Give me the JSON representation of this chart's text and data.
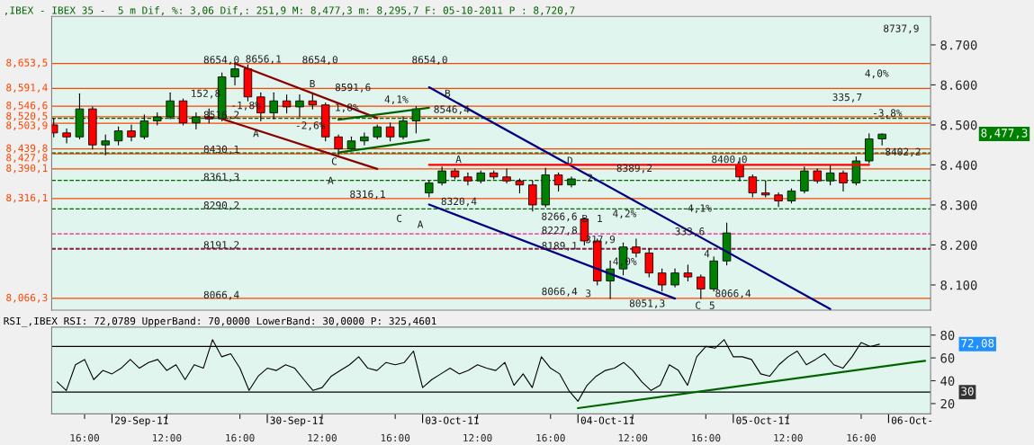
{
  "chart_data": [
    {
      "type": "candlestick",
      "title": ",IBEX - IBEX 35 -  5 m Dif, %: 3,06 Dif,: 251,9 M: 8,477,3 m: 8,295,7 F: 05-10-2011 P : 8,720,7",
      "categories": [
        null,
        null,
        null,
        null,
        null,
        null,
        null,
        null,
        null,
        null,
        null,
        null,
        null,
        null,
        null,
        null,
        null,
        null,
        null,
        null,
        null,
        null,
        null,
        null,
        null,
        null,
        null,
        null,
        null,
        null,
        null,
        null,
        null,
        null,
        null,
        null,
        null,
        null,
        null,
        null,
        null,
        null,
        null,
        null,
        null,
        null,
        null,
        null,
        null,
        null,
        null,
        null,
        null,
        null,
        null,
        null,
        null,
        null,
        null,
        null,
        null,
        null,
        null,
        null,
        null
      ],
      "ohlc": [
        [
          8500,
          8515,
          8470,
          8480
        ],
        [
          8480,
          8490,
          8455,
          8470
        ],
        [
          8470,
          8578,
          8465,
          8540
        ],
        [
          8540,
          8545,
          8440,
          8450
        ],
        [
          8450,
          8475,
          8425,
          8460
        ],
        [
          8460,
          8495,
          8450,
          8485
        ],
        [
          8485,
          8500,
          8460,
          8470
        ],
        [
          8470,
          8525,
          8465,
          8510
        ],
        [
          8510,
          8530,
          8500,
          8520
        ],
        [
          8520,
          8580,
          8515,
          8560
        ],
        [
          8560,
          8565,
          8500,
          8505
        ],
        [
          8505,
          8530,
          8490,
          8520
        ],
        [
          8520,
          8540,
          8505,
          8515
        ],
        [
          8515,
          8630,
          8510,
          8620
        ],
        [
          8620,
          8656,
          8600,
          8640
        ],
        [
          8640,
          8650,
          8560,
          8570
        ],
        [
          8570,
          8580,
          8510,
          8530
        ],
        [
          8530,
          8580,
          8515,
          8560
        ],
        [
          8560,
          8575,
          8530,
          8545
        ],
        [
          8545,
          8575,
          8520,
          8560
        ],
        [
          8560,
          8580,
          8540,
          8550
        ],
        [
          8550,
          8555,
          8460,
          8470
        ],
        [
          8470,
          8475,
          8425,
          8440
        ],
        [
          8440,
          8470,
          8435,
          8460
        ],
        [
          8460,
          8480,
          8450,
          8470
        ],
        [
          8470,
          8500,
          8465,
          8495
        ],
        [
          8495,
          8505,
          8460,
          8470
        ],
        [
          8470,
          8520,
          8465,
          8510
        ],
        [
          8510,
          8546,
          8480,
          8540
        ],
        [
          8330,
          8360,
          8320,
          8355
        ],
        [
          8355,
          8395,
          8350,
          8385
        ],
        [
          8385,
          8390,
          8365,
          8370
        ],
        [
          8370,
          8380,
          8350,
          8360
        ],
        [
          8360,
          8385,
          8355,
          8380
        ],
        [
          8380,
          8385,
          8365,
          8370
        ],
        [
          8370,
          8390,
          8355,
          8360
        ],
        [
          8360,
          8365,
          8330,
          8350
        ],
        [
          8350,
          8360,
          8285,
          8300
        ],
        [
          8300,
          8392,
          8295,
          8375
        ],
        [
          8375,
          8380,
          8335,
          8350
        ],
        [
          8350,
          8370,
          8345,
          8365
        ],
        [
          8265,
          8268,
          8200,
          8210
        ],
        [
          8210,
          8215,
          8100,
          8110
        ],
        [
          8110,
          8160,
          8066,
          8140
        ],
        [
          8140,
          8205,
          8125,
          8195
        ],
        [
          8195,
          8215,
          8170,
          8180
        ],
        [
          8180,
          8190,
          8120,
          8130
        ],
        [
          8130,
          8140,
          8085,
          8100
        ],
        [
          8100,
          8140,
          8095,
          8130
        ],
        [
          8130,
          8150,
          8110,
          8120
        ],
        [
          8120,
          8125,
          8066,
          8090
        ],
        [
          8090,
          8170,
          8085,
          8160
        ],
        [
          8160,
          8255,
          8150,
          8230
        ],
        [
          8400,
          8418,
          8360,
          8370
        ],
        [
          8370,
          8375,
          8320,
          8330
        ],
        [
          8330,
          8360,
          8320,
          8325
        ],
        [
          8325,
          8330,
          8296,
          8310
        ],
        [
          8310,
          8340,
          8305,
          8335
        ],
        [
          8335,
          8395,
          8330,
          8385
        ],
        [
          8385,
          8390,
          8355,
          8360
        ],
        [
          8360,
          8400,
          8350,
          8380
        ],
        [
          8380,
          8385,
          8335,
          8355
        ],
        [
          8355,
          8420,
          8350,
          8410
        ],
        [
          8410,
          8478,
          8405,
          8465
        ],
        [
          8465,
          8478,
          8450,
          8477
        ]
      ],
      "colors": [
        "#ff0000",
        "#ff0000",
        "#008000",
        "#ff0000",
        "#008000",
        "#008000",
        "#ff0000",
        "#008000",
        "#008000",
        "#008000",
        "#ff0000",
        "#008000",
        "#ff0000",
        "#008000",
        "#008000",
        "#ff0000",
        "#ff0000",
        "#008000",
        "#ff0000",
        "#008000",
        "#ff0000",
        "#ff0000",
        "#ff0000",
        "#008000",
        "#008000",
        "#008000",
        "#ff0000",
        "#008000",
        "#008000",
        "#008000",
        "#008000",
        "#ff0000",
        "#ff0000",
        "#008000",
        "#ff0000",
        "#ff0000",
        "#ff0000",
        "#ff0000",
        "#008000",
        "#ff0000",
        "#008000",
        "#ff0000",
        "#ff0000",
        "#008000",
        "#008000",
        "#ff0000",
        "#ff0000",
        "#ff0000",
        "#008000",
        "#ff0000",
        "#ff0000",
        "#008000",
        "#008000",
        "#ff0000",
        "#ff0000",
        "#ff0000",
        "#ff0000",
        "#008000",
        "#008000",
        "#ff0000",
        "#008000",
        "#ff0000",
        "#008000",
        "#008000",
        "#008000"
      ],
      "series": [
        {
          "type": "line",
          "color": "#000080",
          "values": [
            null,
            null,
            null,
            null,
            null,
            null,
            null,
            null,
            null,
            null,
            null,
            null,
            null,
            null,
            null,
            null,
            null,
            null,
            null,
            null,
            null,
            null,
            null,
            null,
            null,
            null,
            null,
            null,
            null,
            8594,
            null,
            null,
            null,
            null,
            null,
            null,
            null,
            null,
            null,
            null,
            null,
            null,
            null,
            null,
            null,
            null,
            null,
            null,
            null,
            null,
            null,
            null,
            null,
            null,
            null,
            null,
            null,
            null,
            null,
            null,
            8040,
            null,
            null,
            null,
            null
          ]
        },
        {
          "type": "line",
          "color": "#000080",
          "values": [
            null,
            null,
            null,
            null,
            null,
            null,
            null,
            null,
            null,
            null,
            null,
            null,
            null,
            null,
            null,
            null,
            null,
            null,
            null,
            null,
            null,
            null,
            null,
            null,
            null,
            null,
            null,
            null,
            null,
            8301,
            null,
            null,
            null,
            null,
            null,
            null,
            null,
            null,
            null,
            null,
            null,
            null,
            null,
            null,
            null,
            null,
            null,
            null,
            8066,
            null,
            null,
            null,
            null,
            null,
            null,
            null,
            null,
            null,
            null,
            null,
            null,
            null,
            null,
            null,
            null
          ]
        },
        {
          "type": "line",
          "color": "#8b0000",
          "values": [
            null,
            null,
            null,
            null,
            null,
            null,
            null,
            null,
            null,
            null,
            null,
            null,
            null,
            null,
            8653,
            null,
            null,
            null,
            null,
            null,
            null,
            null,
            null,
            null,
            null,
            8517,
            null,
            null,
            null,
            null,
            null,
            null,
            null,
            null,
            null,
            null,
            null,
            null,
            null,
            null,
            null,
            null,
            null,
            null,
            null,
            null,
            null,
            null,
            null,
            null,
            null,
            null,
            null,
            null,
            null,
            null,
            null,
            null,
            null,
            null,
            null,
            null,
            null,
            null,
            null
          ]
        },
        {
          "type": "line",
          "color": "#8b0000",
          "values": [
            null,
            null,
            null,
            null,
            null,
            null,
            null,
            null,
            null,
            null,
            null,
            null,
            null,
            8515,
            null,
            null,
            null,
            null,
            null,
            null,
            null,
            null,
            null,
            null,
            null,
            8390,
            null,
            null,
            null,
            null,
            null,
            null,
            null,
            null,
            null,
            null,
            null,
            null,
            null,
            null,
            null,
            null,
            null,
            null,
            null,
            null,
            null,
            null,
            null,
            null,
            null,
            null,
            null,
            null,
            null,
            null,
            null,
            null,
            null,
            null,
            null,
            null,
            null,
            null,
            null
          ]
        },
        {
          "type": "line",
          "color": "#006400",
          "values": [
            null,
            null,
            null,
            null,
            null,
            null,
            null,
            null,
            null,
            null,
            null,
            null,
            null,
            null,
            null,
            null,
            null,
            null,
            null,
            null,
            null,
            null,
            8513,
            null,
            null,
            null,
            null,
            null,
            null,
            8543,
            null,
            null,
            null,
            null,
            null,
            null,
            null,
            null,
            null,
            null,
            null,
            null,
            null,
            null,
            null,
            null,
            null,
            null,
            null,
            null,
            null,
            null,
            null,
            null,
            null,
            null,
            null,
            null,
            null,
            null,
            null,
            null,
            null,
            null,
            null
          ]
        },
        {
          "type": "line",
          "color": "#006400",
          "values": [
            null,
            null,
            null,
            null,
            null,
            null,
            null,
            null,
            null,
            null,
            null,
            null,
            null,
            null,
            null,
            null,
            null,
            null,
            null,
            null,
            null,
            null,
            8431,
            null,
            null,
            null,
            null,
            null,
            null,
            8463,
            null,
            null,
            null,
            null,
            null,
            null,
            null,
            null,
            null,
            null,
            null,
            null,
            null,
            null,
            null,
            null,
            null,
            null,
            null,
            null,
            null,
            null,
            null,
            null,
            null,
            null,
            null,
            null,
            null,
            null,
            null,
            null,
            null,
            null,
            null
          ]
        },
        {
          "type": "line",
          "color": "#ff0000",
          "values": [
            null,
            null,
            null,
            null,
            null,
            null,
            null,
            null,
            null,
            null,
            null,
            null,
            null,
            null,
            null,
            null,
            null,
            null,
            null,
            null,
            null,
            null,
            null,
            null,
            null,
            null,
            null,
            null,
            null,
            8400,
            null,
            null,
            null,
            null,
            null,
            null,
            null,
            null,
            null,
            null,
            null,
            null,
            null,
            null,
            null,
            null,
            null,
            null,
            null,
            null,
            null,
            null,
            null,
            null,
            null,
            null,
            null,
            null,
            null,
            null,
            null,
            null,
            null,
            8400,
            null
          ]
        }
      ],
      "ylim": [
        8037,
        8771
      ],
      "yticks": [
        {
          "value": 8100,
          "label": "8.100"
        },
        {
          "value": 8200,
          "label": "8.200"
        },
        {
          "value": 8300,
          "label": "8.300"
        },
        {
          "value": 8400,
          "label": "8.400"
        },
        {
          "value": 8500,
          "label": "8.500"
        },
        {
          "value": 8600,
          "label": "8.600"
        },
        {
          "value": 8700,
          "label": "8.700"
        }
      ],
      "tick_labels": "y",
      "ref_lines": [
        {
          "axis": "y",
          "value": 8653.5,
          "label": "8,653,5",
          "color": "#ff4500"
        },
        {
          "axis": "y",
          "value": 8591.4,
          "label": "8,591,4",
          "color": "#ff4500"
        },
        {
          "axis": "y",
          "value": 8546.6,
          "label": "8,546,6",
          "color": "#ff4500"
        },
        {
          "axis": "y",
          "value": 8520.5,
          "label": "8,520,5",
          "color": "#ff4500"
        },
        {
          "axis": "y",
          "value": 8503.9,
          "label": "8,503,9",
          "color": "#ff4500"
        },
        {
          "axis": "y",
          "value": 8439.8,
          "label": "8,439,8",
          "color": "#ff4500"
        },
        {
          "axis": "y",
          "value": 8427.8,
          "label": "8,427,8",
          "color": "#ff4500"
        },
        {
          "axis": "y",
          "value": 8390.1,
          "label": "8,390,1",
          "color": "#ff4500"
        },
        {
          "axis": "y",
          "value": 8316.1,
          "label": "8,316,1",
          "color": "#ff4500"
        },
        {
          "axis": "y",
          "value": 8066.3,
          "label": "8,066,3",
          "color": "#ff4500"
        },
        {
          "axis": "y",
          "value": 8516.2,
          "color": "#006400",
          "line_style": "dashed"
        },
        {
          "axis": "y",
          "value": 8430.1,
          "color": "#006400",
          "line_style": "dashed"
        },
        {
          "axis": "y",
          "value": 8361.3,
          "color": "#006400",
          "line_style": "dashed"
        },
        {
          "axis": "y",
          "value": 8290.2,
          "color": "#006400",
          "line_style": "dashed"
        },
        {
          "axis": "y",
          "value": 8191.2,
          "color": "#006400",
          "line_style": "dashed"
        },
        {
          "axis": "y",
          "value": 8227.8,
          "color": "#ff1493",
          "line_style": "dashed"
        },
        {
          "axis": "y",
          "value": 8189.1,
          "color": "#ff1493",
          "line_style": "dashed"
        }
      ],
      "annotations": [
        "8654,0",
        "8516,2",
        "8430,1",
        "8361,3",
        "8290,2",
        "8191,2",
        "8066,4",
        "152,8",
        "8656,1",
        "-1,8%",
        "A",
        "B",
        "8591,6",
        "8654,0",
        "-2,6%",
        "1,8%",
        "C",
        "A",
        "4,1%",
        "8654,0",
        "8546,4",
        "B",
        "8316,1",
        "C",
        "A",
        "8320,4",
        "A",
        "D",
        "2",
        "8266,6",
        "B",
        "1",
        "8227,8",
        "8189,1",
        "8066,4",
        "3",
        "317,9",
        "4,2%",
        "4,0%",
        "8389,2",
        "8051,3",
        "333,6",
        "4,1%",
        "8400,0",
        "4",
        "8066,4",
        "C",
        "5",
        "8737,9",
        "4,0%",
        "335,7",
        "-3,8%",
        "8402,2",
        "8,477,3"
      ],
      "grid": false,
      "legend": false
    },
    {
      "type": "line",
      "title": "RSI_,IBEX RSI: 72,0789 UpperBand: 70,0000 LowerBand: 30,0000 P: 325,4601",
      "categories": [
        null,
        null,
        null,
        "16:00",
        null,
        null,
        null,
        null,
        null,
        null,
        null,
        null,
        "12:00",
        null,
        null,
        null,
        null,
        null,
        null,
        null,
        "16:00",
        null,
        null,
        null,
        null,
        null,
        null,
        null,
        null,
        "12:00",
        null,
        null,
        null,
        null,
        null,
        null,
        null,
        "16:00",
        null,
        null,
        null,
        null,
        null,
        null,
        null,
        null,
        "12:00",
        null,
        null,
        null,
        null,
        null,
        null,
        null,
        "16:00",
        null,
        null,
        null,
        null,
        null,
        null,
        null,
        null,
        "12:00",
        null,
        null,
        null,
        null,
        null,
        null,
        null,
        "16:00",
        null,
        null,
        null,
        null,
        null,
        null,
        null,
        null,
        "12:00",
        null,
        null,
        null,
        null,
        null,
        null,
        null,
        "16:00",
        null,
        null,
        null,
        null,
        null,
        null,
        null
      ],
      "series": [
        {
          "color": "#000000",
          "values": [
            39,
            31.5,
            54,
            58.6,
            41,
            49,
            46,
            51,
            58.6,
            51,
            56,
            58.6,
            49,
            54,
            41,
            54,
            51,
            76,
            61,
            63.6,
            51,
            31.5,
            44,
            51,
            49,
            54,
            51,
            41,
            31.5,
            34,
            44,
            49,
            54,
            61,
            51,
            49,
            56,
            54,
            56,
            66,
            34,
            41,
            46,
            51,
            46,
            49,
            54,
            51,
            49,
            56,
            36,
            46,
            34,
            61,
            51,
            46,
            31.5,
            22,
            36,
            44,
            49,
            51,
            56,
            49,
            39,
            31.5,
            36,
            54,
            49,
            36,
            61,
            70,
            68.5,
            76,
            61,
            61,
            58.6,
            46,
            44,
            54,
            61,
            66,
            54,
            58.6,
            63.6,
            54,
            51,
            61,
            73.5,
            70,
            72,
            null,
            null,
            null,
            null,
            null
          ]
        },
        {
          "type": "line",
          "color": "#006400",
          "values": [
            null,
            null,
            null,
            null,
            null,
            null,
            null,
            null,
            null,
            null,
            null,
            null,
            null,
            null,
            null,
            null,
            null,
            null,
            null,
            null,
            null,
            null,
            null,
            null,
            null,
            null,
            null,
            null,
            null,
            null,
            null,
            null,
            null,
            null,
            null,
            null,
            null,
            null,
            null,
            null,
            null,
            null,
            null,
            null,
            null,
            null,
            null,
            null,
            null,
            null,
            null,
            null,
            null,
            null,
            null,
            null,
            null,
            16,
            null,
            null,
            null,
            null,
            null,
            null,
            null,
            null,
            null,
            null,
            null,
            null,
            null,
            null,
            null,
            null,
            null,
            null,
            null,
            null,
            null,
            null,
            null,
            null,
            null,
            null,
            null,
            null,
            null,
            null,
            null,
            null,
            null,
            null,
            null,
            null,
            null,
            57.5
          ]
        }
      ],
      "ylim": [
        11,
        87
      ],
      "yticks": [
        20,
        40,
        60,
        80
      ],
      "ref_lines": [
        {
          "axis": "y",
          "value": 70,
          "color": "#000000"
        },
        {
          "axis": "y",
          "value": 30,
          "label": "30",
          "color": "#000000"
        }
      ],
      "annotations": [
        "72,08",
        "29-Sep-11",
        "30-Sep-11",
        "03-Oct-11",
        "04-Oct-11",
        "05-Oct-11",
        "06-Oct-"
      ],
      "grid": false,
      "legend": false
    }
  ]
}
